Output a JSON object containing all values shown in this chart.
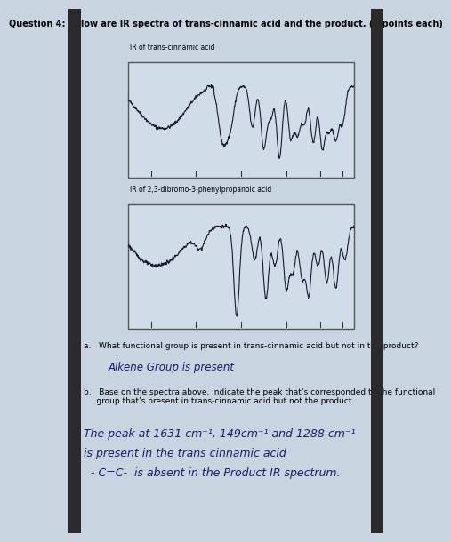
{
  "title": "Question 4: Below are IR spectra of trans-cinnamic acid and the product. (5 points each)",
  "bg_color": "#b8c8d8",
  "page_bg": "#c8d4e0",
  "spectrum1_label": "IR of trans-cinnamic acid",
  "spectrum2_label": "IR of 2,3-dibromo-3-phenylpropanoic acid",
  "question_a": "a.   What functional group is present in trans-cinnamic acid but not in the product?",
  "answer_a": "Alkene Group is present",
  "question_b": "b.   Base on the spectra above, indicate the peak that’s corresponded to the functional\n     group that’s present in trans-cinnamic acid but not the product.",
  "answer_b1": "The peak at 1631 cm⁻¹, 149cm⁻¹ and 1288 cm⁻¹",
  "answer_b2": "is present in the trans cinnamic acid",
  "answer_b3": "  - C=C-  is absent in the Product IR spectrum.",
  "sidebar_color": "#2a2a2a",
  "spectrum_bg": "#d0dce8",
  "line_color": "#1a1a2e"
}
